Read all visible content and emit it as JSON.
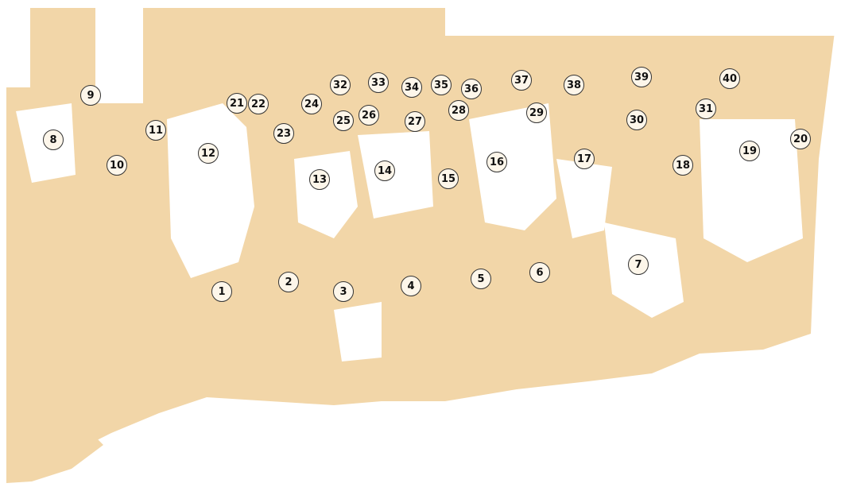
{
  "photo": {
    "tone_color": "#f2d6a8",
    "highlight_color": "#ffffff"
  },
  "markers": [
    {
      "label": "1"
    },
    {
      "label": "2"
    },
    {
      "label": "3"
    },
    {
      "label": "4"
    },
    {
      "label": "5"
    },
    {
      "label": "6"
    },
    {
      "label": "7"
    },
    {
      "label": "8"
    },
    {
      "label": "9"
    },
    {
      "label": "10"
    },
    {
      "label": "11"
    },
    {
      "label": "12"
    },
    {
      "label": "13"
    },
    {
      "label": "14"
    },
    {
      "label": "15"
    },
    {
      "label": "16"
    },
    {
      "label": "17"
    },
    {
      "label": "18"
    },
    {
      "label": "19"
    },
    {
      "label": "20"
    },
    {
      "label": "21"
    },
    {
      "label": "22"
    },
    {
      "label": "23"
    },
    {
      "label": "24"
    },
    {
      "label": "25"
    },
    {
      "label": "26"
    },
    {
      "label": "27"
    },
    {
      "label": "28"
    },
    {
      "label": "29"
    },
    {
      "label": "30"
    },
    {
      "label": "31"
    },
    {
      "label": "32"
    },
    {
      "label": "33"
    },
    {
      "label": "34"
    },
    {
      "label": "35"
    },
    {
      "label": "36"
    },
    {
      "label": "37"
    },
    {
      "label": "38"
    },
    {
      "label": "39"
    },
    {
      "label": "40"
    }
  ]
}
